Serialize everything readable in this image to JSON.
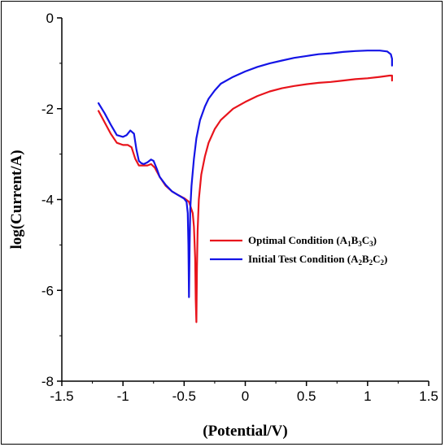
{
  "chart_data": {
    "type": "line",
    "title": "",
    "xlabel": "(Potential/V)",
    "ylabel": "log(Current/A)",
    "xlim": [
      -1.5,
      1.5
    ],
    "ylim": [
      -8,
      0
    ],
    "xticks": [
      -1.5,
      -1,
      -0.5,
      0,
      0.5,
      1,
      1.5
    ],
    "xtick_labels": [
      "-1.5",
      "-1",
      "-0.5",
      "0",
      "0.5",
      "1",
      "1.5"
    ],
    "yticks": [
      0,
      -2,
      -4,
      -6,
      -8
    ],
    "ytick_labels": [
      "0",
      "-2",
      "-4",
      "-6",
      "-8"
    ],
    "grid": false,
    "legend_position": "center-right",
    "series": [
      {
        "name": "Optimal Condition (A1B3C3)",
        "label_main": "Optimal Condition (A",
        "label_parts": [
          {
            "t": "Optimal Condition (A",
            "sub": false
          },
          {
            "t": "1",
            "sub": true
          },
          {
            "t": "B",
            "sub": false
          },
          {
            "t": "3",
            "sub": true
          },
          {
            "t": "C",
            "sub": false
          },
          {
            "t": "3",
            "sub": true
          },
          {
            "t": ")",
            "sub": false
          }
        ],
        "color": "#e8141c",
        "x": [
          -1.2,
          -1.15,
          -1.1,
          -1.05,
          -1.0,
          -0.96,
          -0.93,
          -0.9,
          -0.87,
          -0.84,
          -0.8,
          -0.77,
          -0.74,
          -0.7,
          -0.65,
          -0.6,
          -0.55,
          -0.5,
          -0.46,
          -0.43,
          -0.42,
          -0.41,
          -0.405,
          -0.4,
          -0.395,
          -0.39,
          -0.38,
          -0.36,
          -0.33,
          -0.3,
          -0.25,
          -0.2,
          -0.1,
          0.0,
          0.1,
          0.2,
          0.3,
          0.4,
          0.5,
          0.6,
          0.7,
          0.8,
          0.9,
          1.0,
          1.1,
          1.18,
          1.2,
          1.2
        ],
        "y": [
          -2.05,
          -2.3,
          -2.55,
          -2.75,
          -2.8,
          -2.8,
          -2.85,
          -3.1,
          -3.25,
          -3.25,
          -3.25,
          -3.22,
          -3.3,
          -3.5,
          -3.7,
          -3.82,
          -3.9,
          -3.97,
          -4.05,
          -4.3,
          -4.6,
          -5.3,
          -6.2,
          -6.7,
          -5.5,
          -4.7,
          -4.0,
          -3.45,
          -3.05,
          -2.75,
          -2.45,
          -2.25,
          -2.0,
          -1.85,
          -1.72,
          -1.62,
          -1.55,
          -1.5,
          -1.46,
          -1.43,
          -1.41,
          -1.38,
          -1.35,
          -1.33,
          -1.3,
          -1.27,
          -1.27,
          -1.38
        ]
      },
      {
        "name": "Initial Test Condition (A2B2C2)",
        "label_parts": [
          {
            "t": "Initial Test Condition (A",
            "sub": false
          },
          {
            "t": "2",
            "sub": true
          },
          {
            "t": "B",
            "sub": false
          },
          {
            "t": "2",
            "sub": true
          },
          {
            "t": "C",
            "sub": false
          },
          {
            "t": "2",
            "sub": true
          },
          {
            "t": ")",
            "sub": false
          }
        ],
        "color": "#1414e6",
        "x": [
          -1.2,
          -1.15,
          -1.1,
          -1.05,
          -1.0,
          -0.97,
          -0.94,
          -0.91,
          -0.89,
          -0.87,
          -0.85,
          -0.83,
          -0.8,
          -0.77,
          -0.75,
          -0.72,
          -0.7,
          -0.65,
          -0.6,
          -0.55,
          -0.5,
          -0.48,
          -0.47,
          -0.465,
          -0.46,
          -0.455,
          -0.45,
          -0.44,
          -0.42,
          -0.4,
          -0.37,
          -0.33,
          -0.3,
          -0.25,
          -0.2,
          -0.1,
          0.0,
          0.1,
          0.2,
          0.3,
          0.4,
          0.5,
          0.6,
          0.7,
          0.8,
          0.9,
          1.0,
          1.1,
          1.16,
          1.19,
          1.2,
          1.2
        ],
        "y": [
          -1.88,
          -2.1,
          -2.35,
          -2.58,
          -2.62,
          -2.58,
          -2.48,
          -2.55,
          -2.9,
          -3.15,
          -3.2,
          -3.22,
          -3.18,
          -3.12,
          -3.15,
          -3.35,
          -3.5,
          -3.68,
          -3.82,
          -3.9,
          -3.98,
          -4.05,
          -4.3,
          -5.0,
          -6.15,
          -5.0,
          -4.2,
          -3.7,
          -3.1,
          -2.65,
          -2.25,
          -1.95,
          -1.78,
          -1.6,
          -1.45,
          -1.3,
          -1.18,
          -1.08,
          -1.0,
          -0.94,
          -0.88,
          -0.84,
          -0.8,
          -0.78,
          -0.75,
          -0.73,
          -0.72,
          -0.72,
          -0.74,
          -0.8,
          -0.9,
          -1.05
        ]
      }
    ]
  }
}
